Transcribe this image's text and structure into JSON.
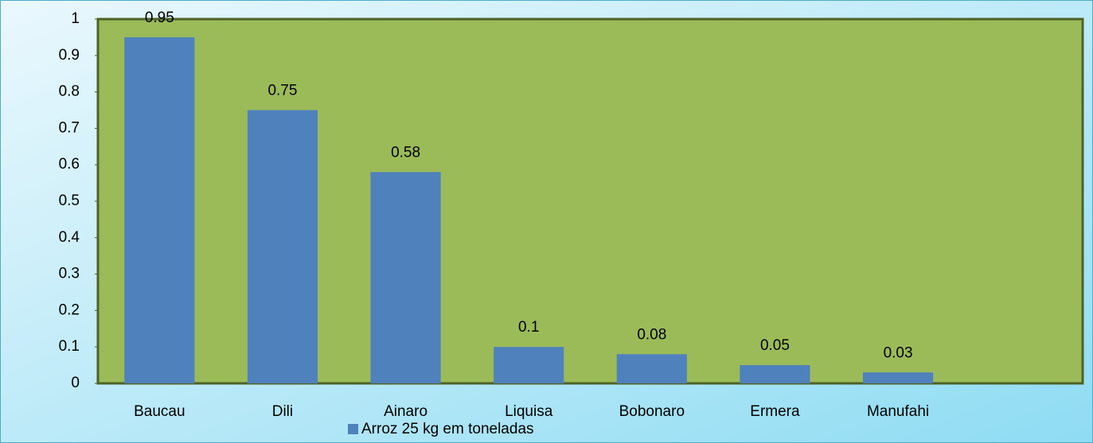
{
  "chart_data": {
    "type": "bar",
    "categories": [
      "Baucau",
      "Dili",
      "Ainaro",
      "Liquisa",
      "Bobonaro",
      "Ermera",
      "Manufahi",
      null
    ],
    "series": [
      {
        "name": "Arroz 25 kg em toneladas",
        "color": "#4f81bd",
        "values": [
          0.95,
          0.75,
          0.58,
          0.1,
          0.08,
          0.05,
          0.03,
          null
        ]
      }
    ],
    "ylim": [
      0,
      1
    ],
    "yticks": [
      0,
      0.1,
      0.2,
      0.3,
      0.4,
      0.5,
      0.6,
      0.7,
      0.8,
      0.9,
      1
    ],
    "plot_background": "#9bbb59",
    "legend": "bottom"
  }
}
